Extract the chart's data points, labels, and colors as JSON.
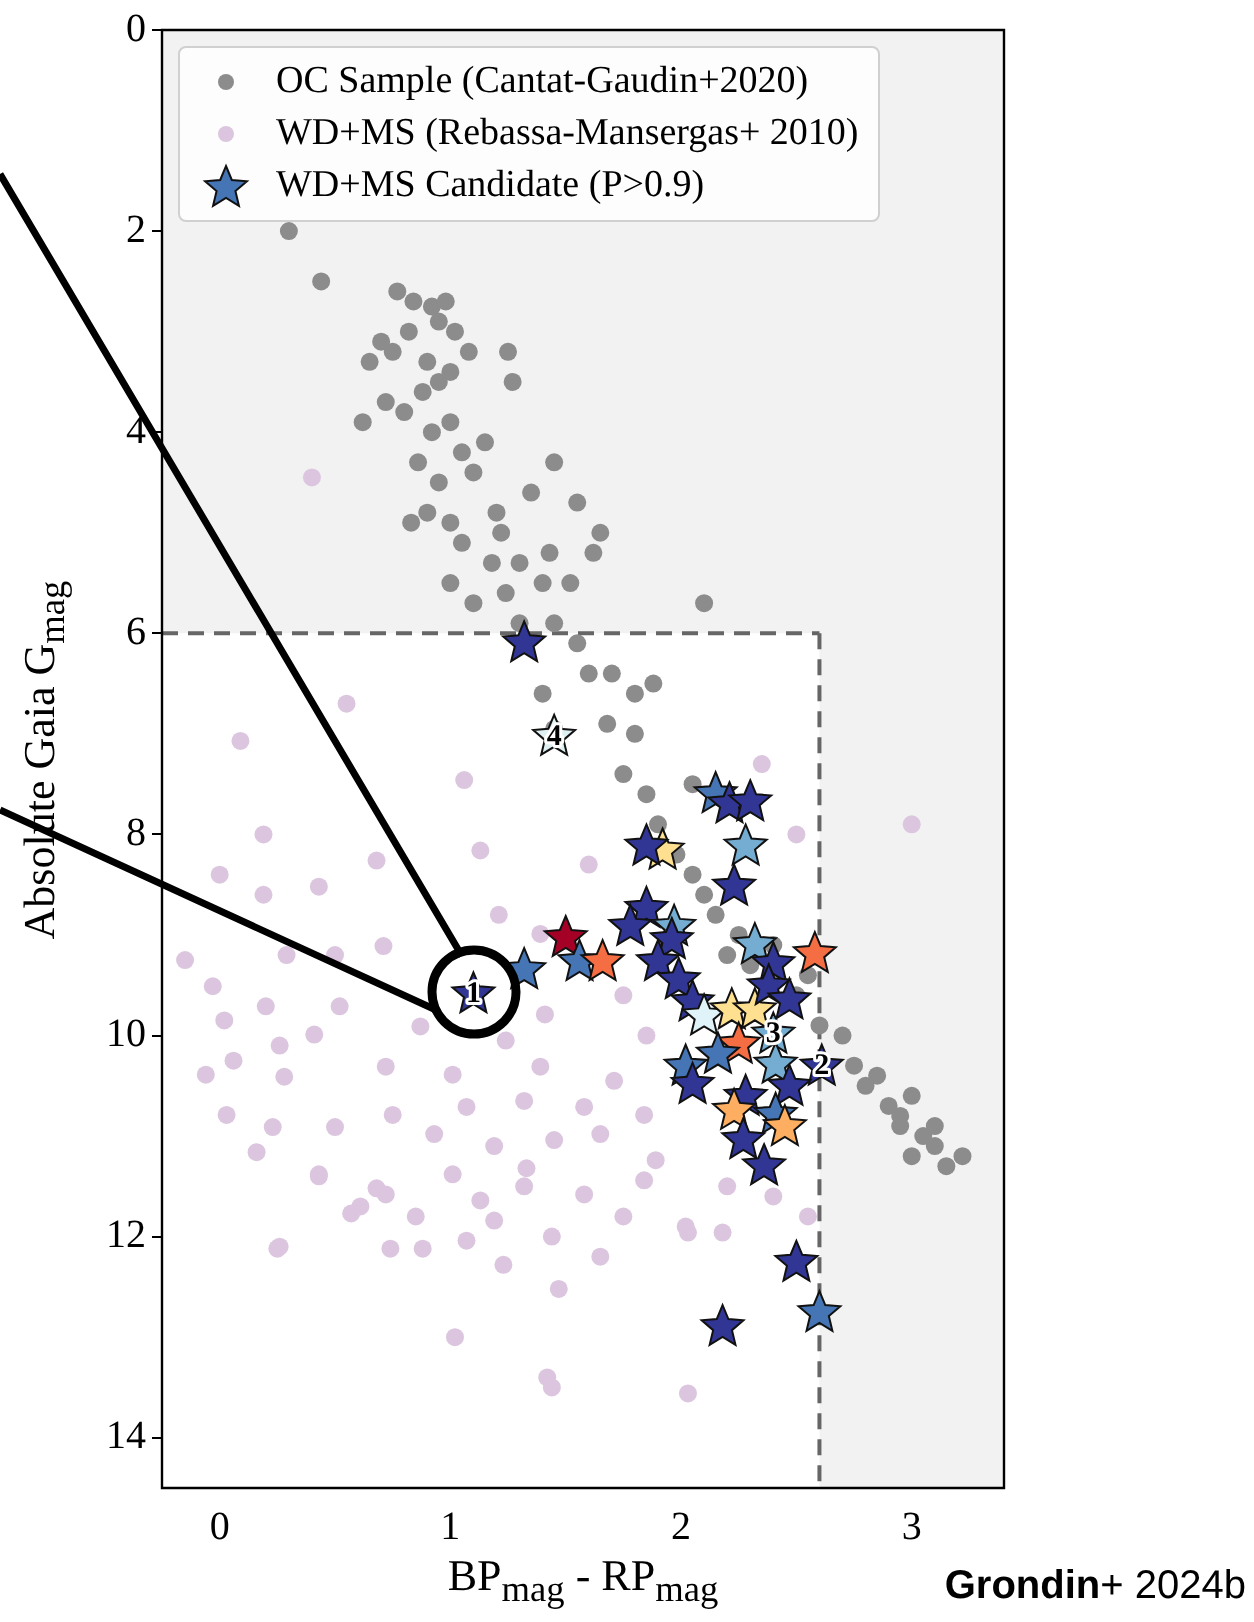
{
  "chart_data": {
    "type": "scatter",
    "xlabel": "BP$_{mag}$ - RP$_{mag}$",
    "ylabel": "Absolute Gaia G$_{mag}$",
    "xlim": [
      -0.25,
      3.4
    ],
    "ylim": [
      14.5,
      0
    ],
    "xticks": [
      0,
      1,
      2,
      3
    ],
    "yticks": [
      0,
      2,
      4,
      6,
      8,
      10,
      12,
      14
    ],
    "grid": false,
    "legend": "top left",
    "marker": "circle",
    "bands": [
      {
        "axis": "y",
        "from": 0,
        "to": 6,
        "color": "#f2f2f2"
      },
      {
        "axis": "x",
        "from": 2.6,
        "to": 3.4,
        "color": "#f2f2f2"
      }
    ],
    "ref_lines": [
      {
        "axis": "y",
        "value": 6,
        "color": "#666666",
        "line_style": "dashed"
      },
      {
        "axis": "x",
        "value": 2.6,
        "color": "#666666",
        "line_style": "dashed"
      }
    ],
    "annotations": [
      {
        "text": "1",
        "x": 1.1,
        "y": 9.59
      },
      {
        "text": "2",
        "x": 2.61,
        "y": 10.31
      },
      {
        "text": "3",
        "x": 2.4,
        "y": 9.99
      },
      {
        "text": "4",
        "x": 1.45,
        "y": 7.03
      },
      "Grondin+ 2024b"
    ],
    "series": [
      {
        "name": "OC Sample (Cantat-Gaudin+2020)",
        "color": "#8c8c8c",
        "x": [
          0.3,
          0.44,
          0.77,
          0.84,
          0.92,
          0.98,
          0.7,
          0.75,
          0.65,
          0.82,
          0.95,
          1.02,
          0.9,
          0.95,
          0.88,
          1.0,
          1.08,
          1.25,
          1.27,
          0.72,
          0.62,
          0.8,
          0.92,
          1.0,
          1.05,
          0.86,
          0.95,
          1.1,
          1.15,
          1.45,
          1.35,
          0.83,
          0.9,
          1.0,
          1.05,
          1.2,
          1.22,
          1.18,
          1.3,
          1.0,
          1.1,
          1.24,
          1.3,
          1.4,
          1.43,
          1.52,
          1.62,
          1.45,
          1.55,
          1.6,
          1.7,
          1.8,
          1.88,
          1.68,
          1.8,
          1.4,
          1.45,
          1.75,
          1.85,
          1.9,
          1.98,
          2.05,
          2.1,
          2.15,
          2.25,
          2.3,
          2.5,
          2.55,
          2.6,
          2.7,
          2.75,
          2.8,
          2.85,
          2.9,
          2.95,
          3.0,
          3.05,
          3.1,
          3.15,
          3.0,
          3.22,
          2.95,
          3.1,
          2.4,
          2.2,
          1.55,
          1.65,
          2.05,
          2.1
        ],
        "values": [
          2.0,
          2.5,
          2.6,
          2.7,
          2.75,
          2.7,
          3.1,
          3.2,
          3.3,
          3.0,
          2.9,
          3.0,
          3.3,
          3.5,
          3.6,
          3.4,
          3.2,
          3.2,
          3.5,
          3.7,
          3.9,
          3.8,
          4.0,
          3.9,
          4.2,
          4.3,
          4.5,
          4.4,
          4.1,
          4.3,
          4.6,
          4.9,
          4.8,
          4.9,
          5.1,
          4.8,
          5.0,
          5.3,
          5.3,
          5.5,
          5.7,
          5.6,
          5.9,
          5.5,
          5.2,
          5.5,
          5.2,
          5.9,
          6.1,
          6.4,
          6.4,
          6.6,
          6.5,
          6.9,
          7.0,
          6.6,
          6.95,
          7.4,
          7.6,
          7.9,
          8.2,
          8.4,
          8.6,
          8.8,
          9.0,
          9.3,
          9.6,
          9.4,
          9.9,
          10.0,
          10.3,
          10.5,
          10.4,
          10.7,
          10.9,
          10.6,
          11.0,
          11.1,
          11.3,
          11.2,
          11.2,
          10.8,
          10.9,
          9.1,
          9.2,
          4.7,
          5.0,
          7.5,
          5.7
        ]
      },
      {
        "name": "WD+MS (Rebassa-Mansergas+ 2010)",
        "color": "#dcc6df",
        "x": [
          0.55,
          0.09,
          0.19,
          0.0,
          -0.15,
          0.19,
          0.43,
          0.68,
          0.71,
          0.5,
          0.29,
          -0.03,
          0.02,
          0.26,
          0.06,
          0.28,
          0.41,
          0.52,
          0.72,
          0.87,
          1.01,
          1.24,
          1.39,
          1.41,
          0.03,
          0.23,
          0.5,
          0.75,
          0.93,
          1.07,
          1.19,
          1.32,
          1.45,
          1.58,
          1.71,
          1.84,
          1.65,
          0.43,
          0.72,
          1.01,
          1.32,
          1.58,
          1.84,
          2.02,
          1.19,
          0.61,
          0.26,
          1.07,
          1.39,
          1.21,
          1.13,
          1.06,
          0.2,
          -0.06,
          0.25,
          0.74,
          0.88,
          1.02,
          1.44,
          1.23,
          1.47,
          1.42,
          1.44,
          2.03,
          1.65,
          2.03,
          2.18,
          0.57,
          0.85,
          1.13,
          1.75,
          0.16,
          0.43,
          0.68,
          1.33,
          1.89,
          1.6,
          1.75,
          1.85,
          2.2,
          2.4,
          2.55,
          2.5,
          2.35,
          3.0,
          0.4
        ],
        "values": [
          6.7,
          7.07,
          8.0,
          8.4,
          9.25,
          8.6,
          8.52,
          8.26,
          9.11,
          9.2,
          9.2,
          9.51,
          9.85,
          10.1,
          10.25,
          10.41,
          9.99,
          9.71,
          10.31,
          9.91,
          10.39,
          10.05,
          10.31,
          9.79,
          10.79,
          10.91,
          10.91,
          10.79,
          10.98,
          10.71,
          11.1,
          10.65,
          11.04,
          10.71,
          10.45,
          10.79,
          10.98,
          11.38,
          11.58,
          11.38,
          11.5,
          11.58,
          11.44,
          11.9,
          11.84,
          11.7,
          12.1,
          12.04,
          8.99,
          8.8,
          8.16,
          7.46,
          9.71,
          10.39,
          12.12,
          12.12,
          12.12,
          13.0,
          12.0,
          12.28,
          12.52,
          13.4,
          13.5,
          13.56,
          12.2,
          11.96,
          11.96,
          11.77,
          11.8,
          11.64,
          11.8,
          11.16,
          11.4,
          11.52,
          11.32,
          11.24,
          8.3,
          9.6,
          10.0,
          11.5,
          11.6,
          11.8,
          8.0,
          7.3,
          7.9,
          4.45
        ]
      },
      {
        "name": "WD+MS Candidate (P>0.9)",
        "color": "#4575b4",
        "marker": "star",
        "x": [
          1.32,
          1.45,
          2.15,
          2.21,
          2.3,
          2.28,
          2.23,
          1.92,
          1.85,
          1.5,
          1.56,
          1.66,
          1.32,
          1.85,
          1.78,
          1.97,
          1.96,
          1.9,
          1.99,
          2.05,
          2.1,
          2.22,
          2.32,
          2.32,
          2.4,
          2.38,
          2.47,
          2.58,
          2.4,
          2.25,
          2.16,
          2.61,
          2.41,
          2.02,
          2.05,
          2.28,
          2.47,
          2.23,
          2.41,
          2.45,
          2.27,
          2.36,
          2.5,
          2.6,
          2.18,
          1.1
        ],
        "values": [
          6.1,
          7.03,
          7.6,
          7.7,
          7.68,
          8.12,
          8.52,
          8.16,
          8.12,
          9.03,
          9.27,
          9.27,
          9.35,
          8.74,
          8.92,
          8.92,
          9.05,
          9.27,
          9.45,
          9.67,
          9.81,
          9.75,
          9.75,
          9.1,
          9.29,
          9.51,
          9.65,
          9.19,
          9.99,
          10.09,
          10.19,
          10.31,
          10.29,
          10.31,
          10.49,
          10.61,
          10.51,
          10.75,
          10.79,
          10.91,
          11.04,
          11.3,
          12.26,
          12.76,
          12.9,
          9.59
        ],
        "colors": [
          "#313695",
          "#dff0f2",
          "#4575b4",
          "#313695",
          "#313695",
          "#74add1",
          "#313695",
          "#fee090",
          "#313695",
          "#a50026",
          "#4575b4",
          "#f46d43",
          "#4575b4",
          "#313695",
          "#313695",
          "#74add1",
          "#313695",
          "#313695",
          "#313695",
          "#313695",
          "#e0f3f8",
          "#fee090",
          "#fee090",
          "#74add1",
          "#313695",
          "#313695",
          "#313695",
          "#f46d43",
          "#74add1",
          "#f46d43",
          "#4575b4",
          "#313695",
          "#74add1",
          "#4575b4",
          "#313695",
          "#313695",
          "#313695",
          "#fdae61",
          "#4575b4",
          "#fdae61",
          "#313695",
          "#313695",
          "#313695",
          "#4575b4",
          "#313695",
          "#313695"
        ]
      }
    ]
  }
}
